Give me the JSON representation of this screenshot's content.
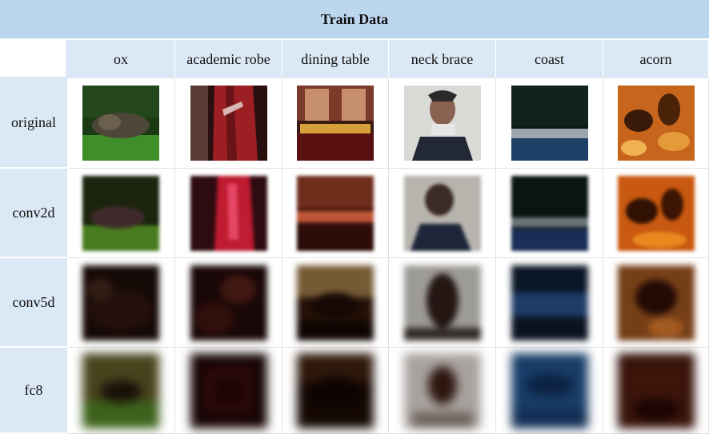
{
  "title": "Train Data",
  "columns": [
    "ox",
    "academic robe",
    "dining table",
    "neck brace",
    "coast",
    "acorn"
  ],
  "rows": [
    "original",
    "conv2d",
    "conv5d",
    "fc8"
  ],
  "colors": {
    "header_bg": "#bcd6ee",
    "subheader_bg": "#dbe8f5"
  }
}
